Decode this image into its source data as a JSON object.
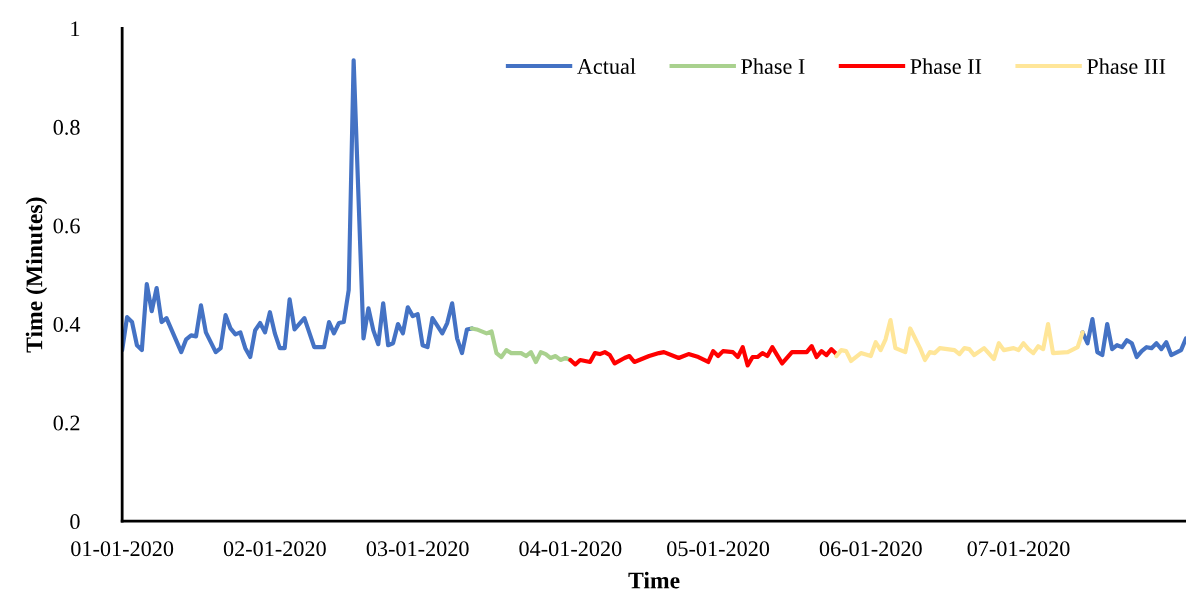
{
  "chart_data": {
    "type": "line",
    "xlabel": "Time",
    "ylabel": "Time (Minutes)",
    "xlim": [
      "2020-01-01",
      "2020-08-04"
    ],
    "ylim": [
      0,
      1
    ],
    "xticks": [
      {
        "value": "2020-01-01",
        "label": "01-01-2020"
      },
      {
        "value": "2020-02-01",
        "label": "02-01-2020"
      },
      {
        "value": "2020-03-01",
        "label": "03-01-2020"
      },
      {
        "value": "2020-04-01",
        "label": "04-01-2020"
      },
      {
        "value": "2020-05-01",
        "label": "05-01-2020"
      },
      {
        "value": "2020-06-01",
        "label": "06-01-2020"
      },
      {
        "value": "2020-07-01",
        "label": "07-01-2020"
      }
    ],
    "yticks": [
      0,
      0.2,
      0.4,
      0.6,
      0.8,
      1
    ],
    "grid": false,
    "legend": "top right",
    "marker": "none",
    "line_style": "solid",
    "series": [
      {
        "name": "Actual",
        "color": "#4472c4",
        "x": [
          "2020-01-01",
          "2020-01-02",
          "2020-01-03",
          "2020-01-04",
          "2020-01-05",
          "2020-01-06",
          "2020-01-07",
          "2020-01-08",
          "2020-01-09",
          "2020-01-10",
          "2020-01-13",
          "2020-01-14",
          "2020-01-15",
          "2020-01-16",
          "2020-01-17",
          "2020-01-18",
          "2020-01-20",
          "2020-01-21",
          "2020-01-22",
          "2020-01-23",
          "2020-01-24",
          "2020-01-25",
          "2020-01-26",
          "2020-01-27",
          "2020-01-28",
          "2020-01-29",
          "2020-01-30",
          "2020-01-31",
          "2020-02-01",
          "2020-02-02",
          "2020-02-03",
          "2020-02-04",
          "2020-02-05",
          "2020-02-07",
          "2020-02-09",
          "2020-02-11",
          "2020-02-12",
          "2020-02-13",
          "2020-02-14",
          "2020-02-15",
          "2020-02-16",
          "2020-02-17",
          "2020-02-19",
          "2020-02-20",
          "2020-02-21",
          "2020-02-22",
          "2020-02-23",
          "2020-02-24",
          "2020-02-25",
          "2020-02-26",
          "2020-02-27",
          "2020-02-28",
          "2020-02-29",
          "2020-03-01",
          "2020-03-02",
          "2020-03-03",
          "2020-03-04",
          "2020-03-06",
          "2020-03-07",
          "2020-03-08",
          "2020-03-09",
          "2020-03-10",
          "2020-03-11",
          "2020-03-12",
          "2020-05-10",
          "2020-07-14",
          "2020-07-15",
          "2020-07-16",
          "2020-07-17",
          "2020-07-18",
          "2020-07-19",
          "2020-07-20",
          "2020-07-21",
          "2020-07-22",
          "2020-07-23",
          "2020-07-24",
          "2020-07-25",
          "2020-07-26",
          "2020-07-27",
          "2020-07-28",
          "2020-07-29",
          "2020-07-30",
          "2020-07-31",
          "2020-08-01",
          "2020-08-03",
          "2020-08-04"
        ],
        "values": [
          0.347,
          0.414,
          0.404,
          0.357,
          0.347,
          0.481,
          0.426,
          0.473,
          0.404,
          0.412,
          0.343,
          0.369,
          0.377,
          0.375,
          0.438,
          0.383,
          0.343,
          0.351,
          0.418,
          0.391,
          0.379,
          0.383,
          0.351,
          0.333,
          0.387,
          0.402,
          0.383,
          0.424,
          0.381,
          0.351,
          0.351,
          0.45,
          0.389,
          0.412,
          0.353,
          0.353,
          0.404,
          0.381,
          0.402,
          0.404,
          0.469,
          0.935,
          0.371,
          0.432,
          0.387,
          0.359,
          0.442,
          0.357,
          0.361,
          0.4,
          0.381,
          0.434,
          0.416,
          0.42,
          0.357,
          0.353,
          0.412,
          0.381,
          0.402,
          0.442,
          0.371,
          0.341,
          0.389,
          0.391,
          null,
          0.383,
          0.361,
          0.41,
          0.343,
          0.337,
          0.4,
          0.349,
          0.357,
          0.353,
          0.367,
          0.361,
          0.333,
          0.345,
          0.353,
          0.351,
          0.361,
          0.349,
          0.363,
          0.337,
          0.347,
          0.371
        ]
      },
      {
        "name": "Phase I",
        "color": "#a9d18e",
        "x": [
          "2020-03-12",
          "2020-03-13",
          "2020-03-15",
          "2020-03-16",
          "2020-03-17",
          "2020-03-18",
          "2020-03-19",
          "2020-03-20",
          "2020-03-22",
          "2020-03-23",
          "2020-03-24",
          "2020-03-25",
          "2020-03-26",
          "2020-03-27",
          "2020-03-28",
          "2020-03-29",
          "2020-03-30",
          "2020-03-31",
          "2020-04-01"
        ],
        "values": [
          0.391,
          0.389,
          0.381,
          0.385,
          0.341,
          0.333,
          0.347,
          0.341,
          0.341,
          0.335,
          0.343,
          0.323,
          0.343,
          0.339,
          0.331,
          0.335,
          0.327,
          0.331,
          0.327
        ]
      },
      {
        "name": "Phase II",
        "color": "#ff0000",
        "x": [
          "2020-04-01",
          "2020-04-02",
          "2020-04-03",
          "2020-04-05",
          "2020-04-06",
          "2020-04-07",
          "2020-04-08",
          "2020-04-09",
          "2020-04-10",
          "2020-04-12",
          "2020-04-13",
          "2020-04-14",
          "2020-04-16",
          "2020-04-17",
          "2020-04-19",
          "2020-04-20",
          "2020-04-23",
          "2020-04-25",
          "2020-04-27",
          "2020-04-29",
          "2020-04-30",
          "2020-05-01",
          "2020-05-02",
          "2020-05-04",
          "2020-05-05",
          "2020-05-06",
          "2020-05-07",
          "2020-05-08",
          "2020-05-09",
          "2020-05-10",
          "2020-05-11",
          "2020-05-12",
          "2020-05-14",
          "2020-05-16",
          "2020-05-19",
          "2020-05-20",
          "2020-05-21",
          "2020-05-22",
          "2020-05-23",
          "2020-05-24",
          "2020-05-25"
        ],
        "values": [
          0.327,
          0.318,
          0.327,
          0.323,
          0.341,
          0.339,
          0.343,
          0.337,
          0.32,
          0.331,
          0.335,
          0.323,
          0.331,
          0.335,
          0.341,
          0.343,
          0.331,
          0.339,
          0.333,
          0.323,
          0.345,
          0.335,
          0.345,
          0.343,
          0.333,
          0.353,
          0.316,
          0.333,
          0.333,
          0.341,
          0.335,
          0.353,
          0.32,
          0.343,
          0.343,
          0.355,
          0.333,
          0.345,
          0.337,
          0.349,
          0.339
        ]
      },
      {
        "name": "Phase III",
        "color": "#ffe699",
        "x": [
          "2020-05-25",
          "2020-05-26",
          "2020-05-27",
          "2020-05-28",
          "2020-05-30",
          "2020-06-01",
          "2020-06-02",
          "2020-06-03",
          "2020-06-04",
          "2020-06-05",
          "2020-06-06",
          "2020-06-08",
          "2020-06-09",
          "2020-06-11",
          "2020-06-12",
          "2020-06-13",
          "2020-06-14",
          "2020-06-15",
          "2020-06-18",
          "2020-06-19",
          "2020-06-20",
          "2020-06-21",
          "2020-06-22",
          "2020-06-24",
          "2020-06-26",
          "2020-06-27",
          "2020-06-28",
          "2020-06-30",
          "2020-07-01",
          "2020-07-02",
          "2020-07-03",
          "2020-07-04",
          "2020-07-05",
          "2020-07-06",
          "2020-07-07",
          "2020-07-08",
          "2020-07-11",
          "2020-07-13",
          "2020-07-14"
        ],
        "values": [
          0.335,
          0.347,
          0.345,
          0.325,
          0.341,
          0.335,
          0.363,
          0.347,
          0.369,
          0.408,
          0.351,
          0.343,
          0.391,
          0.351,
          0.327,
          0.343,
          0.341,
          0.351,
          0.347,
          0.339,
          0.351,
          0.349,
          0.337,
          0.351,
          0.329,
          0.361,
          0.347,
          0.351,
          0.347,
          0.361,
          0.349,
          0.341,
          0.355,
          0.349,
          0.4,
          0.341,
          0.343,
          0.353,
          0.383
        ]
      }
    ]
  }
}
